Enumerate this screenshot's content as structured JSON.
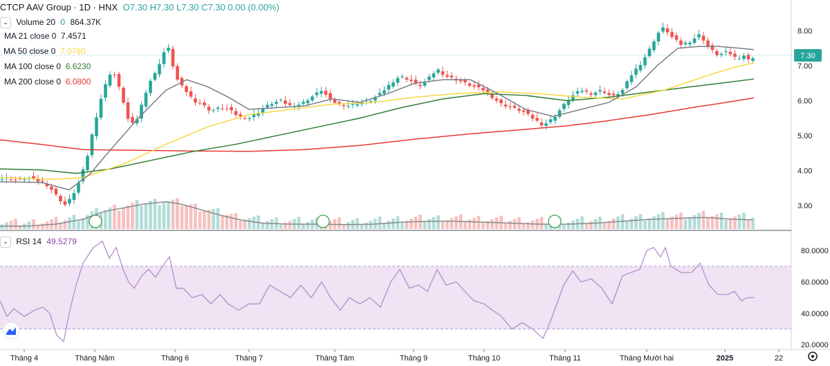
{
  "header": {
    "symbol": "CTCP AAV Group · 1D · HNX",
    "ohlc": "O7.30  H7.30  L7.30  C7.30  0.00 (0.00%)"
  },
  "indicators": {
    "volume": {
      "label": "Volume 20",
      "extra": "0",
      "value": "864.37K"
    },
    "ma21": {
      "label": "MA 21 close 0",
      "value": "7.4571",
      "color": "#131722"
    },
    "ma50": {
      "label": "MA 50 close 0",
      "value": "7.0780",
      "color": "#f5d742"
    },
    "ma100": {
      "label": "MA 100 close 0",
      "value": "6.6230",
      "color": "#2e7d32"
    },
    "ma200": {
      "label": "MA 200 close 0",
      "value": "6.0800",
      "color": "#e53935"
    },
    "rsi": {
      "label": "RSI 14",
      "value": "49.5279",
      "color": "#8e44ad"
    }
  },
  "colors": {
    "up": "#26a69a",
    "down": "#ef5350",
    "rsi_band": "#efe3f4"
  },
  "price_tag": "7.30",
  "chart_data": {
    "type": "candlestick",
    "price_axis": {
      "ticks": [
        "8.00",
        "7.00",
        "6.00",
        "5.00",
        "4.00",
        "3.00"
      ],
      "range": [
        2.35,
        8.8
      ]
    },
    "rsi_axis": {
      "ticks": [
        "80.0000",
        "60.0000",
        "40.0000",
        "20.0000"
      ],
      "range": [
        17,
        92
      ],
      "band": [
        30,
        70
      ]
    },
    "x_labels": [
      "Tháng 4",
      "Tháng Năm",
      "Tháng 6",
      "Tháng 7",
      "Tháng Tám",
      "Tháng 9",
      "Tháng 10",
      "Tháng 11",
      "Tháng Mười hai",
      "2025",
      "22"
    ],
    "price_path": [
      [
        0,
        3.75
      ],
      [
        12,
        3.78
      ],
      [
        25,
        3.72
      ],
      [
        40,
        3.8
      ],
      [
        55,
        3.7
      ],
      [
        65,
        3.65
      ],
      [
        75,
        3.45
      ],
      [
        85,
        3.2
      ],
      [
        95,
        3.0
      ],
      [
        105,
        3.3
      ],
      [
        115,
        3.7
      ],
      [
        125,
        4.3
      ],
      [
        135,
        5.2
      ],
      [
        145,
        6.0
      ],
      [
        155,
        6.6
      ],
      [
        162,
        6.9
      ],
      [
        170,
        6.5
      ],
      [
        178,
        6.0
      ],
      [
        186,
        5.4
      ],
      [
        195,
        5.3
      ],
      [
        205,
        5.9
      ],
      [
        215,
        6.5
      ],
      [
        225,
        6.8
      ],
      [
        235,
        7.3
      ],
      [
        242,
        7.6
      ],
      [
        250,
        7.0
      ],
      [
        258,
        6.5
      ],
      [
        268,
        6.3
      ],
      [
        280,
        6.0
      ],
      [
        292,
        5.9
      ],
      [
        305,
        5.7
      ],
      [
        318,
        5.8
      ],
      [
        330,
        5.75
      ],
      [
        345,
        5.55
      ],
      [
        360,
        5.5
      ],
      [
        375,
        5.7
      ],
      [
        390,
        5.9
      ],
      [
        405,
        6.0
      ],
      [
        420,
        5.85
      ],
      [
        435,
        5.9
      ],
      [
        450,
        6.1
      ],
      [
        465,
        6.3
      ],
      [
        478,
        6.0
      ],
      [
        492,
        5.9
      ],
      [
        505,
        5.85
      ],
      [
        520,
        5.95
      ],
      [
        535,
        6.0
      ],
      [
        550,
        6.2
      ],
      [
        565,
        6.5
      ],
      [
        578,
        6.7
      ],
      [
        592,
        6.6
      ],
      [
        605,
        6.4
      ],
      [
        618,
        6.6
      ],
      [
        632,
        6.9
      ],
      [
        645,
        6.7
      ],
      [
        660,
        6.6
      ],
      [
        672,
        6.5
      ],
      [
        685,
        6.4
      ],
      [
        700,
        6.3
      ],
      [
        712,
        6.1
      ],
      [
        725,
        5.9
      ],
      [
        740,
        5.8
      ],
      [
        755,
        5.7
      ],
      [
        770,
        5.5
      ],
      [
        785,
        5.3
      ],
      [
        800,
        5.5
      ],
      [
        812,
        5.8
      ],
      [
        825,
        6.1
      ],
      [
        840,
        6.3
      ],
      [
        855,
        6.2
      ],
      [
        870,
        6.3
      ],
      [
        885,
        6.1
      ],
      [
        900,
        6.3
      ],
      [
        915,
        6.8
      ],
      [
        928,
        7.1
      ],
      [
        940,
        7.5
      ],
      [
        950,
        7.9
      ],
      [
        960,
        8.1
      ],
      [
        972,
        7.8
      ],
      [
        985,
        7.6
      ],
      [
        998,
        7.7
      ],
      [
        1012,
        7.9
      ],
      [
        1025,
        7.5
      ],
      [
        1038,
        7.3
      ],
      [
        1052,
        7.4
      ],
      [
        1065,
        7.2
      ],
      [
        1075,
        7.3
      ],
      [
        1085,
        7.1
      ],
      [
        1090,
        7.3
      ]
    ],
    "ma21_path": [
      [
        0,
        3.68
      ],
      [
        60,
        3.66
      ],
      [
        100,
        3.45
      ],
      [
        130,
        3.9
      ],
      [
        160,
        4.6
      ],
      [
        200,
        5.5
      ],
      [
        240,
        6.3
      ],
      [
        270,
        6.6
      ],
      [
        300,
        6.4
      ],
      [
        330,
        6.1
      ],
      [
        360,
        5.75
      ],
      [
        400,
        5.8
      ],
      [
        440,
        5.85
      ],
      [
        480,
        6.05
      ],
      [
        520,
        5.95
      ],
      [
        560,
        6.2
      ],
      [
        600,
        6.5
      ],
      [
        640,
        6.6
      ],
      [
        680,
        6.6
      ],
      [
        720,
        6.2
      ],
      [
        760,
        5.75
      ],
      [
        800,
        5.55
      ],
      [
        840,
        5.75
      ],
      [
        880,
        5.95
      ],
      [
        920,
        6.4
      ],
      [
        950,
        7.0
      ],
      [
        980,
        7.5
      ],
      [
        1010,
        7.55
      ],
      [
        1040,
        7.55
      ],
      [
        1070,
        7.5
      ],
      [
        1090,
        7.46
      ]
    ],
    "ma50_path": [
      [
        0,
        3.8
      ],
      [
        80,
        3.75
      ],
      [
        120,
        3.8
      ],
      [
        180,
        4.2
      ],
      [
        240,
        4.75
      ],
      [
        300,
        5.25
      ],
      [
        360,
        5.6
      ],
      [
        420,
        5.75
      ],
      [
        480,
        5.9
      ],
      [
        540,
        5.95
      ],
      [
        600,
        6.1
      ],
      [
        660,
        6.2
      ],
      [
        720,
        6.25
      ],
      [
        780,
        6.2
      ],
      [
        840,
        6.1
      ],
      [
        900,
        6.05
      ],
      [
        960,
        6.3
      ],
      [
        1020,
        6.7
      ],
      [
        1060,
        6.95
      ],
      [
        1090,
        7.08
      ]
    ],
    "ma100_path": [
      [
        0,
        4.05
      ],
      [
        60,
        4.02
      ],
      [
        110,
        3.92
      ],
      [
        160,
        4.05
      ],
      [
        220,
        4.3
      ],
      [
        280,
        4.55
      ],
      [
        340,
        4.75
      ],
      [
        400,
        5.0
      ],
      [
        460,
        5.25
      ],
      [
        520,
        5.5
      ],
      [
        580,
        5.8
      ],
      [
        640,
        6.05
      ],
      [
        700,
        6.2
      ],
      [
        760,
        6.15
      ],
      [
        820,
        6.0
      ],
      [
        880,
        6.1
      ],
      [
        940,
        6.25
      ],
      [
        1000,
        6.4
      ],
      [
        1050,
        6.52
      ],
      [
        1090,
        6.62
      ]
    ],
    "ma200_path": [
      [
        0,
        4.88
      ],
      [
        60,
        4.75
      ],
      [
        120,
        4.6
      ],
      [
        200,
        4.58
      ],
      [
        280,
        4.56
      ],
      [
        360,
        4.55
      ],
      [
        440,
        4.6
      ],
      [
        520,
        4.72
      ],
      [
        600,
        4.9
      ],
      [
        680,
        5.05
      ],
      [
        760,
        5.18
      ],
      [
        820,
        5.28
      ],
      [
        880,
        5.43
      ],
      [
        940,
        5.6
      ],
      [
        1000,
        5.8
      ],
      [
        1050,
        5.95
      ],
      [
        1090,
        6.08
      ]
    ],
    "rsi_path": [
      [
        0,
        48
      ],
      [
        10,
        38
      ],
      [
        20,
        43
      ],
      [
        35,
        38
      ],
      [
        50,
        42
      ],
      [
        62,
        44
      ],
      [
        72,
        40
      ],
      [
        82,
        26
      ],
      [
        92,
        22
      ],
      [
        100,
        40
      ],
      [
        110,
        58
      ],
      [
        120,
        72
      ],
      [
        135,
        82
      ],
      [
        148,
        86
      ],
      [
        158,
        75
      ],
      [
        168,
        82
      ],
      [
        178,
        68
      ],
      [
        186,
        60
      ],
      [
        194,
        56
      ],
      [
        205,
        64
      ],
      [
        215,
        68
      ],
      [
        225,
        63
      ],
      [
        235,
        70
      ],
      [
        245,
        76
      ],
      [
        255,
        56
      ],
      [
        265,
        56
      ],
      [
        278,
        50
      ],
      [
        292,
        52
      ],
      [
        305,
        46
      ],
      [
        318,
        52
      ],
      [
        330,
        46
      ],
      [
        345,
        42
      ],
      [
        360,
        46
      ],
      [
        375,
        46
      ],
      [
        390,
        58
      ],
      [
        405,
        54
      ],
      [
        420,
        50
      ],
      [
        435,
        58
      ],
      [
        450,
        50
      ],
      [
        465,
        60
      ],
      [
        478,
        50
      ],
      [
        492,
        42
      ],
      [
        505,
        50
      ],
      [
        520,
        46
      ],
      [
        535,
        50
      ],
      [
        550,
        44
      ],
      [
        565,
        60
      ],
      [
        578,
        68
      ],
      [
        592,
        56
      ],
      [
        605,
        58
      ],
      [
        618,
        54
      ],
      [
        632,
        68
      ],
      [
        645,
        58
      ],
      [
        660,
        60
      ],
      [
        672,
        54
      ],
      [
        685,
        48
      ],
      [
        700,
        46
      ],
      [
        712,
        42
      ],
      [
        725,
        38
      ],
      [
        740,
        30
      ],
      [
        755,
        34
      ],
      [
        770,
        30
      ],
      [
        785,
        24
      ],
      [
        795,
        34
      ],
      [
        805,
        46
      ],
      [
        815,
        58
      ],
      [
        828,
        67
      ],
      [
        840,
        60
      ],
      [
        855,
        62
      ],
      [
        870,
        56
      ],
      [
        885,
        46
      ],
      [
        900,
        64
      ],
      [
        912,
        66
      ],
      [
        925,
        68
      ],
      [
        935,
        80
      ],
      [
        945,
        82
      ],
      [
        955,
        76
      ],
      [
        962,
        82
      ],
      [
        970,
        70
      ],
      [
        985,
        66
      ],
      [
        1000,
        66
      ],
      [
        1012,
        72
      ],
      [
        1025,
        58
      ],
      [
        1038,
        52
      ],
      [
        1052,
        52
      ],
      [
        1062,
        54
      ],
      [
        1072,
        48
      ],
      [
        1080,
        50
      ],
      [
        1090,
        50
      ]
    ],
    "volume_path": [
      [
        0,
        0.3
      ],
      [
        40,
        0.3
      ],
      [
        80,
        0.5
      ],
      [
        120,
        1.0
      ],
      [
        150,
        1.8
      ],
      [
        180,
        2.2
      ],
      [
        210,
        2.6
      ],
      [
        240,
        2.8
      ],
      [
        260,
        2.6
      ],
      [
        290,
        2.0
      ],
      [
        320,
        1.4
      ],
      [
        350,
        0.9
      ],
      [
        380,
        0.6
      ],
      [
        420,
        0.5
      ],
      [
        460,
        0.5
      ],
      [
        500,
        0.45
      ],
      [
        540,
        0.5
      ],
      [
        580,
        0.7
      ],
      [
        620,
        0.8
      ],
      [
        660,
        0.8
      ],
      [
        700,
        0.7
      ],
      [
        740,
        0.6
      ],
      [
        780,
        0.5
      ],
      [
        820,
        0.5
      ],
      [
        860,
        0.6
      ],
      [
        900,
        0.8
      ],
      [
        940,
        1.0
      ],
      [
        980,
        1.1
      ],
      [
        1020,
        1.2
      ],
      [
        1060,
        1.0
      ],
      [
        1090,
        0.95
      ]
    ],
    "volume_events": [
      138,
      467,
      802
    ]
  }
}
